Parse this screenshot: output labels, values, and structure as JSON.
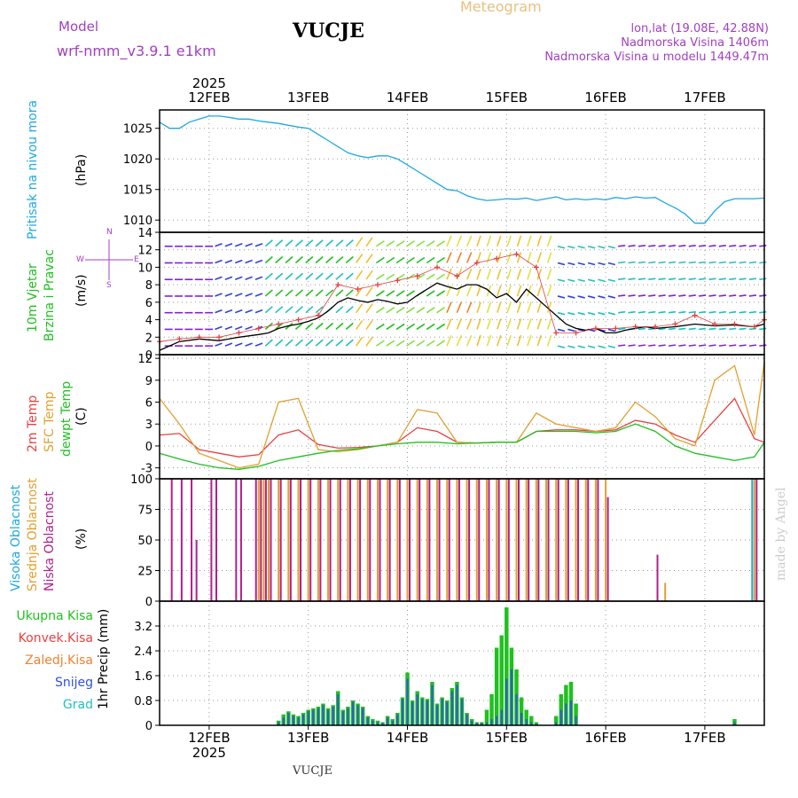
{
  "header": {
    "model_label": "Model",
    "model_name": "wrf-nmm_v3.9.1 e1km",
    "station": "VUCJE",
    "meteogram": "Meteogram",
    "coords": "lon,lat (19.08E, 42.88N)",
    "elevation": "Nadmorska Visina 1406m",
    "model_elevation": "Nadmorska Visina u modelu 1449.47m",
    "footer_station": "VUCJE",
    "watermark": "made by Angel"
  },
  "x_axis": {
    "year": "2025",
    "ticks": [
      "12FEB",
      "13FEB",
      "14FEB",
      "15FEB",
      "16FEB",
      "17FEB"
    ],
    "start": 0,
    "end": 6.1
  },
  "colors": {
    "pressure": "#1ea8e0",
    "wind_speed": "#000000",
    "gust": "#e04040",
    "t2m": "#e84040",
    "tsfc": "#e0a030",
    "dew": "#20c020",
    "cloud_high": "#1ea8e0",
    "cloud_mid": "#e0a030",
    "cloud_low": "#b0208a",
    "precip_total": "#20c020",
    "precip_conv": "#e84040",
    "precip_frozen": "#f08030",
    "precip_snow": "#3050e0",
    "precip_hail": "#20c0c0"
  },
  "panels": {
    "pressure": {
      "label": "Pritisak na nivou mora",
      "unit": "(hPa)"
    },
    "wind": {
      "label1": "10m Vjetar",
      "label2": "Brzina i Pravac",
      "unit": "(m/s)",
      "compass_n": "N",
      "compass_s": "S",
      "compass_w": "W",
      "compass_e": "E"
    },
    "temp": {
      "label1": "2m Temp",
      "label2": "SFC Temp",
      "label3": "dewpt Temp",
      "unit": "(C)"
    },
    "cloud": {
      "label1": "Visoka Oblacnost",
      "label2": "Srednja Oblacnost",
      "label3": "Niska Oblacnost",
      "unit": "(%)"
    },
    "precip": {
      "unit": "1hr Precip (mm)",
      "legend": [
        "Ukupna Kisa",
        "Konvek.Kisa",
        "Zaledj.Kisa",
        "Snijeg",
        "Grad"
      ]
    }
  },
  "chart_data": [
    {
      "type": "line",
      "name": "pressure",
      "ylim": [
        1008,
        1028
      ],
      "yticks": [
        1010,
        1015,
        1020,
        1025
      ],
      "series": [
        {
          "x": [
            0,
            0.1,
            0.2,
            0.3,
            0.4,
            0.5,
            0.6,
            0.7,
            0.8,
            0.9,
            1.0,
            1.1,
            1.2,
            1.3,
            1.4,
            1.5,
            1.6,
            1.7,
            1.8,
            1.9,
            2.0,
            2.1,
            2.2,
            2.3,
            2.4,
            2.5,
            2.6,
            2.7,
            2.8,
            2.9,
            3.0,
            3.1,
            3.2,
            3.3,
            3.4,
            3.5,
            3.6,
            3.7,
            3.8,
            3.9,
            4.0,
            4.1,
            4.2,
            4.3,
            4.4,
            4.5,
            4.6,
            4.7,
            4.8,
            4.9,
            5.0,
            5.1,
            5.2,
            5.3,
            5.4,
            5.5,
            5.6,
            5.7,
            5.8,
            5.9,
            6.0,
            6.1
          ],
          "values": [
            1026,
            1025,
            1025,
            1026,
            1026.5,
            1027,
            1027,
            1026.8,
            1026.5,
            1026.5,
            1026.2,
            1026,
            1025.8,
            1025.5,
            1025.2,
            1025,
            1024,
            1023,
            1022,
            1021,
            1020.5,
            1020.2,
            1020.5,
            1020.5,
            1020,
            1019,
            1018,
            1017,
            1016,
            1015,
            1014.8,
            1014,
            1013.5,
            1013.2,
            1013.3,
            1013.5,
            1013.4,
            1013.6,
            1013.2,
            1013.5,
            1013.8,
            1013.3,
            1013.5,
            1013.3,
            1013.5,
            1013.3,
            1013.7,
            1013.5,
            1013.8,
            1013.6,
            1013.7,
            1012.8,
            1012,
            1011,
            1009.5,
            1009.5,
            1011.5,
            1013,
            1013.5,
            1013.5,
            1013.5,
            1013.6
          ]
        }
      ]
    },
    {
      "type": "line",
      "name": "wind",
      "ylim": [
        0,
        14
      ],
      "yticks": [
        0,
        2,
        4,
        6,
        8,
        10,
        12,
        14
      ],
      "series": [
        {
          "x": [
            0,
            0.2,
            0.4,
            0.6,
            0.8,
            1.0,
            1.1,
            1.2,
            1.3,
            1.4,
            1.5,
            1.6,
            1.7,
            1.8,
            1.9,
            2.0,
            2.1,
            2.2,
            2.3,
            2.4,
            2.5,
            2.6,
            2.7,
            2.8,
            2.9,
            3.0,
            3.1,
            3.2,
            3.3,
            3.4,
            3.5,
            3.6,
            3.7,
            3.8,
            3.9,
            4.0,
            4.1,
            4.2,
            4.3,
            4.4,
            4.5,
            4.6,
            4.7,
            4.8,
            4.9,
            5.0,
            5.2,
            5.4,
            5.6,
            5.8,
            6.0,
            6.1
          ],
          "values": [
            0.5,
            1.5,
            1.8,
            1.6,
            2.0,
            2.3,
            2.5,
            3.0,
            3.3,
            3.5,
            3.8,
            4.2,
            5.0,
            6.0,
            6.5,
            6.2,
            6.0,
            6.3,
            6.1,
            5.8,
            6.0,
            6.8,
            7.5,
            8.2,
            7.8,
            7.5,
            8.0,
            8.0,
            7.5,
            6.5,
            7.0,
            6.0,
            7.5,
            6.5,
            5.5,
            4.5,
            3.5,
            3.0,
            2.8,
            3.0,
            2.5,
            2.5,
            2.8,
            3.0,
            3.2,
            3.0,
            3.2,
            3.5,
            3.3,
            3.4,
            3.2,
            3.5
          ]
        },
        {
          "x": [
            0,
            0.2,
            0.4,
            0.6,
            0.8,
            1.0,
            1.2,
            1.4,
            1.6,
            1.8,
            2.0,
            2.2,
            2.4,
            2.6,
            2.8,
            3.0,
            3.2,
            3.4,
            3.6,
            3.8,
            4.0,
            4.2,
            4.4,
            4.6,
            4.8,
            5.0,
            5.2,
            5.4,
            5.6,
            5.8,
            6.0,
            6.1
          ],
          "values": [
            1.5,
            1.8,
            2.0,
            2.0,
            2.5,
            3.0,
            3.5,
            4.0,
            4.5,
            8.0,
            7.5,
            8.0,
            8.5,
            9.0,
            10.0,
            9.0,
            10.5,
            11.0,
            11.5,
            10.0,
            2.5,
            2.5,
            3.0,
            3.0,
            3.2,
            3.2,
            3.5,
            4.5,
            3.5,
            3.5,
            3.2,
            4.0
          ]
        }
      ]
    },
    {
      "type": "line",
      "name": "temperature",
      "ylim": [
        -4.5,
        12.5
      ],
      "yticks": [
        -3,
        0,
        3,
        6,
        9,
        12
      ],
      "series": [
        {
          "x": [
            0,
            0.2,
            0.4,
            0.6,
            0.8,
            1.0,
            1.2,
            1.4,
            1.6,
            1.8,
            2.0,
            2.2,
            2.4,
            2.6,
            2.8,
            3.0,
            3.2,
            3.4,
            3.6,
            3.8,
            4.0,
            4.2,
            4.4,
            4.6,
            4.8,
            5.0,
            5.2,
            5.4,
            5.6,
            5.8,
            6.0,
            6.1
          ],
          "values": [
            1.5,
            1.7,
            -0.5,
            -1.0,
            -1.5,
            -1.2,
            1.5,
            2.2,
            0.2,
            -0.3,
            -0.2,
            0,
            0.5,
            2.5,
            2.0,
            0.5,
            0.4,
            0.5,
            0.5,
            2.0,
            2.2,
            2.2,
            2.0,
            2.2,
            3.5,
            3.0,
            1.5,
            0.5,
            3.5,
            6.5,
            1.0,
            0.5
          ]
        },
        {
          "x": [
            0,
            0.2,
            0.4,
            0.6,
            0.8,
            1.0,
            1.2,
            1.4,
            1.6,
            1.8,
            2.0,
            2.2,
            2.4,
            2.6,
            2.8,
            3.0,
            3.2,
            3.4,
            3.6,
            3.8,
            4.0,
            4.2,
            4.4,
            4.6,
            4.8,
            5.0,
            5.2,
            5.4,
            5.6,
            5.8,
            6.0,
            6.1
          ],
          "values": [
            6.5,
            3.0,
            -1.0,
            -2.0,
            -3.0,
            -2.5,
            6.0,
            6.5,
            -0.5,
            -0.8,
            -0.5,
            0,
            0.5,
            5.0,
            4.5,
            0.5,
            0.4,
            0.5,
            0.5,
            4.5,
            3.0,
            2.5,
            2.0,
            2.5,
            6.0,
            4.0,
            1.0,
            0.0,
            9.0,
            11.0,
            1.5,
            11.5
          ]
        },
        {
          "x": [
            0,
            0.2,
            0.4,
            0.6,
            0.8,
            1.0,
            1.2,
            1.4,
            1.6,
            1.8,
            2.0,
            2.2,
            2.4,
            2.6,
            2.8,
            3.0,
            3.2,
            3.4,
            3.6,
            3.8,
            4.0,
            4.2,
            4.4,
            4.6,
            4.8,
            5.0,
            5.2,
            5.4,
            5.6,
            5.8,
            6.0,
            6.1
          ],
          "values": [
            -1.0,
            -1.8,
            -2.5,
            -3.0,
            -3.2,
            -2.8,
            -2.0,
            -1.5,
            -1.0,
            -0.6,
            -0.4,
            0,
            0.3,
            0.5,
            0.5,
            0.3,
            0.4,
            0.5,
            0.5,
            2.0,
            2.0,
            2.0,
            1.8,
            2.0,
            3.0,
            2.0,
            0.0,
            -1.0,
            -1.5,
            -2.0,
            -1.5,
            0.5
          ]
        }
      ]
    },
    {
      "type": "bar",
      "name": "cloud",
      "ylim": [
        0,
        100
      ],
      "yticks": [
        0,
        25,
        50,
        75,
        100
      ],
      "x": [
        0.1,
        0.2,
        0.3,
        0.35,
        0.5,
        0.55,
        0.75,
        0.8,
        0.95,
        1.0,
        1.05,
        1.1,
        1.2,
        1.3,
        1.4,
        1.5,
        1.6,
        1.7,
        1.8,
        1.9,
        2.0,
        2.1,
        2.2,
        2.3,
        2.4,
        2.5,
        2.6,
        2.7,
        2.8,
        2.9,
        3.0,
        3.1,
        3.2,
        3.3,
        3.4,
        3.5,
        3.6,
        3.7,
        3.8,
        3.9,
        4.0,
        4.1,
        4.2,
        4.3,
        4.4,
        4.5,
        5.0,
        5.1,
        5.9,
        6.0
      ],
      "series": [
        {
          "name": "Visoka Oblacnost",
          "values": [
            0,
            0,
            0,
            0,
            0,
            0,
            0,
            0,
            0,
            0,
            0,
            0,
            0,
            0,
            0,
            0,
            0,
            0,
            0,
            0,
            0,
            0,
            0,
            0,
            0,
            0,
            0,
            0,
            0,
            0,
            0,
            0,
            0,
            0,
            0,
            0,
            0,
            0,
            0,
            0,
            0,
            0,
            0,
            0,
            0,
            0,
            0,
            0,
            0,
            100
          ]
        },
        {
          "name": "Srednja Oblacnost",
          "values": [
            0,
            0,
            0,
            0,
            0,
            0,
            0,
            0,
            0,
            100,
            100,
            100,
            100,
            100,
            100,
            100,
            100,
            100,
            100,
            100,
            100,
            100,
            100,
            100,
            100,
            100,
            100,
            100,
            100,
            100,
            100,
            100,
            100,
            100,
            100,
            100,
            100,
            100,
            100,
            100,
            100,
            100,
            100,
            100,
            100,
            100,
            0,
            15,
            0,
            100
          ]
        },
        {
          "name": "Niska Oblacnost",
          "values": [
            100,
            100,
            100,
            50,
            100,
            100,
            100,
            100,
            100,
            100,
            100,
            100,
            100,
            100,
            100,
            100,
            100,
            100,
            100,
            100,
            100,
            100,
            100,
            100,
            100,
            100,
            100,
            100,
            100,
            100,
            100,
            100,
            100,
            100,
            100,
            100,
            100,
            100,
            100,
            100,
            100,
            100,
            100,
            100,
            100,
            85,
            38,
            0,
            0,
            100
          ]
        }
      ]
    },
    {
      "type": "bar",
      "name": "precip",
      "ylim": [
        0,
        4.0
      ],
      "yticks": [
        0,
        0.8,
        1.6,
        2.4,
        3.2
      ],
      "x": [
        1.2,
        1.25,
        1.3,
        1.35,
        1.4,
        1.45,
        1.5,
        1.55,
        1.6,
        1.65,
        1.7,
        1.75,
        1.8,
        1.85,
        1.9,
        1.95,
        2.0,
        2.05,
        2.1,
        2.15,
        2.2,
        2.25,
        2.3,
        2.35,
        2.4,
        2.45,
        2.5,
        2.55,
        2.6,
        2.65,
        2.7,
        2.75,
        2.8,
        2.85,
        2.9,
        2.95,
        3.0,
        3.05,
        3.1,
        3.15,
        3.2,
        3.25,
        3.3,
        3.35,
        3.4,
        3.45,
        3.5,
        3.55,
        3.6,
        3.65,
        3.7,
        3.75,
        3.8,
        3.85,
        3.9,
        3.95,
        4.0,
        4.05,
        4.1,
        4.15,
        4.2,
        5.8
      ],
      "series": [
        {
          "name": "Ukupna Kisa",
          "values": [
            0.15,
            0.35,
            0.45,
            0.35,
            0.3,
            0.4,
            0.5,
            0.55,
            0.6,
            0.7,
            0.55,
            0.65,
            1.1,
            0.5,
            0.6,
            0.8,
            0.7,
            0.6,
            0.3,
            0.2,
            0.15,
            0.1,
            0.3,
            0.2,
            0.4,
            0.9,
            1.7,
            0.8,
            1.1,
            0.9,
            0.85,
            1.4,
            0.7,
            0.9,
            0.8,
            1.2,
            1.4,
            0.9,
            0.4,
            0.2,
            0.1,
            0.1,
            0.5,
            1.0,
            2.5,
            2.9,
            3.8,
            2.5,
            1.8,
            0.9,
            0.5,
            0.3,
            0.1,
            0,
            0,
            0,
            0.3,
            1.0,
            1.3,
            1.4,
            0.7,
            0.2
          ]
        },
        {
          "name": "Snijeg",
          "values": [
            0.1,
            0.25,
            0.4,
            0.3,
            0.25,
            0.35,
            0.45,
            0.5,
            0.55,
            0.65,
            0.5,
            0.6,
            1.0,
            0.45,
            0.55,
            0.75,
            0.65,
            0.55,
            0.25,
            0.15,
            0.1,
            0.08,
            0.25,
            0.15,
            0.35,
            0.85,
            1.5,
            0.75,
            1.0,
            0.85,
            0.8,
            1.3,
            0.65,
            0.85,
            0.75,
            1.1,
            1.3,
            0.85,
            0.35,
            0.15,
            0.08,
            0.08,
            0.1,
            0.2,
            0.3,
            0.5,
            1.5,
            1.8,
            1.0,
            0.4,
            0.2,
            0.1,
            0.05,
            0,
            0,
            0,
            0.1,
            0.5,
            0.7,
            0.8,
            0.3,
            0.1
          ]
        }
      ]
    }
  ]
}
